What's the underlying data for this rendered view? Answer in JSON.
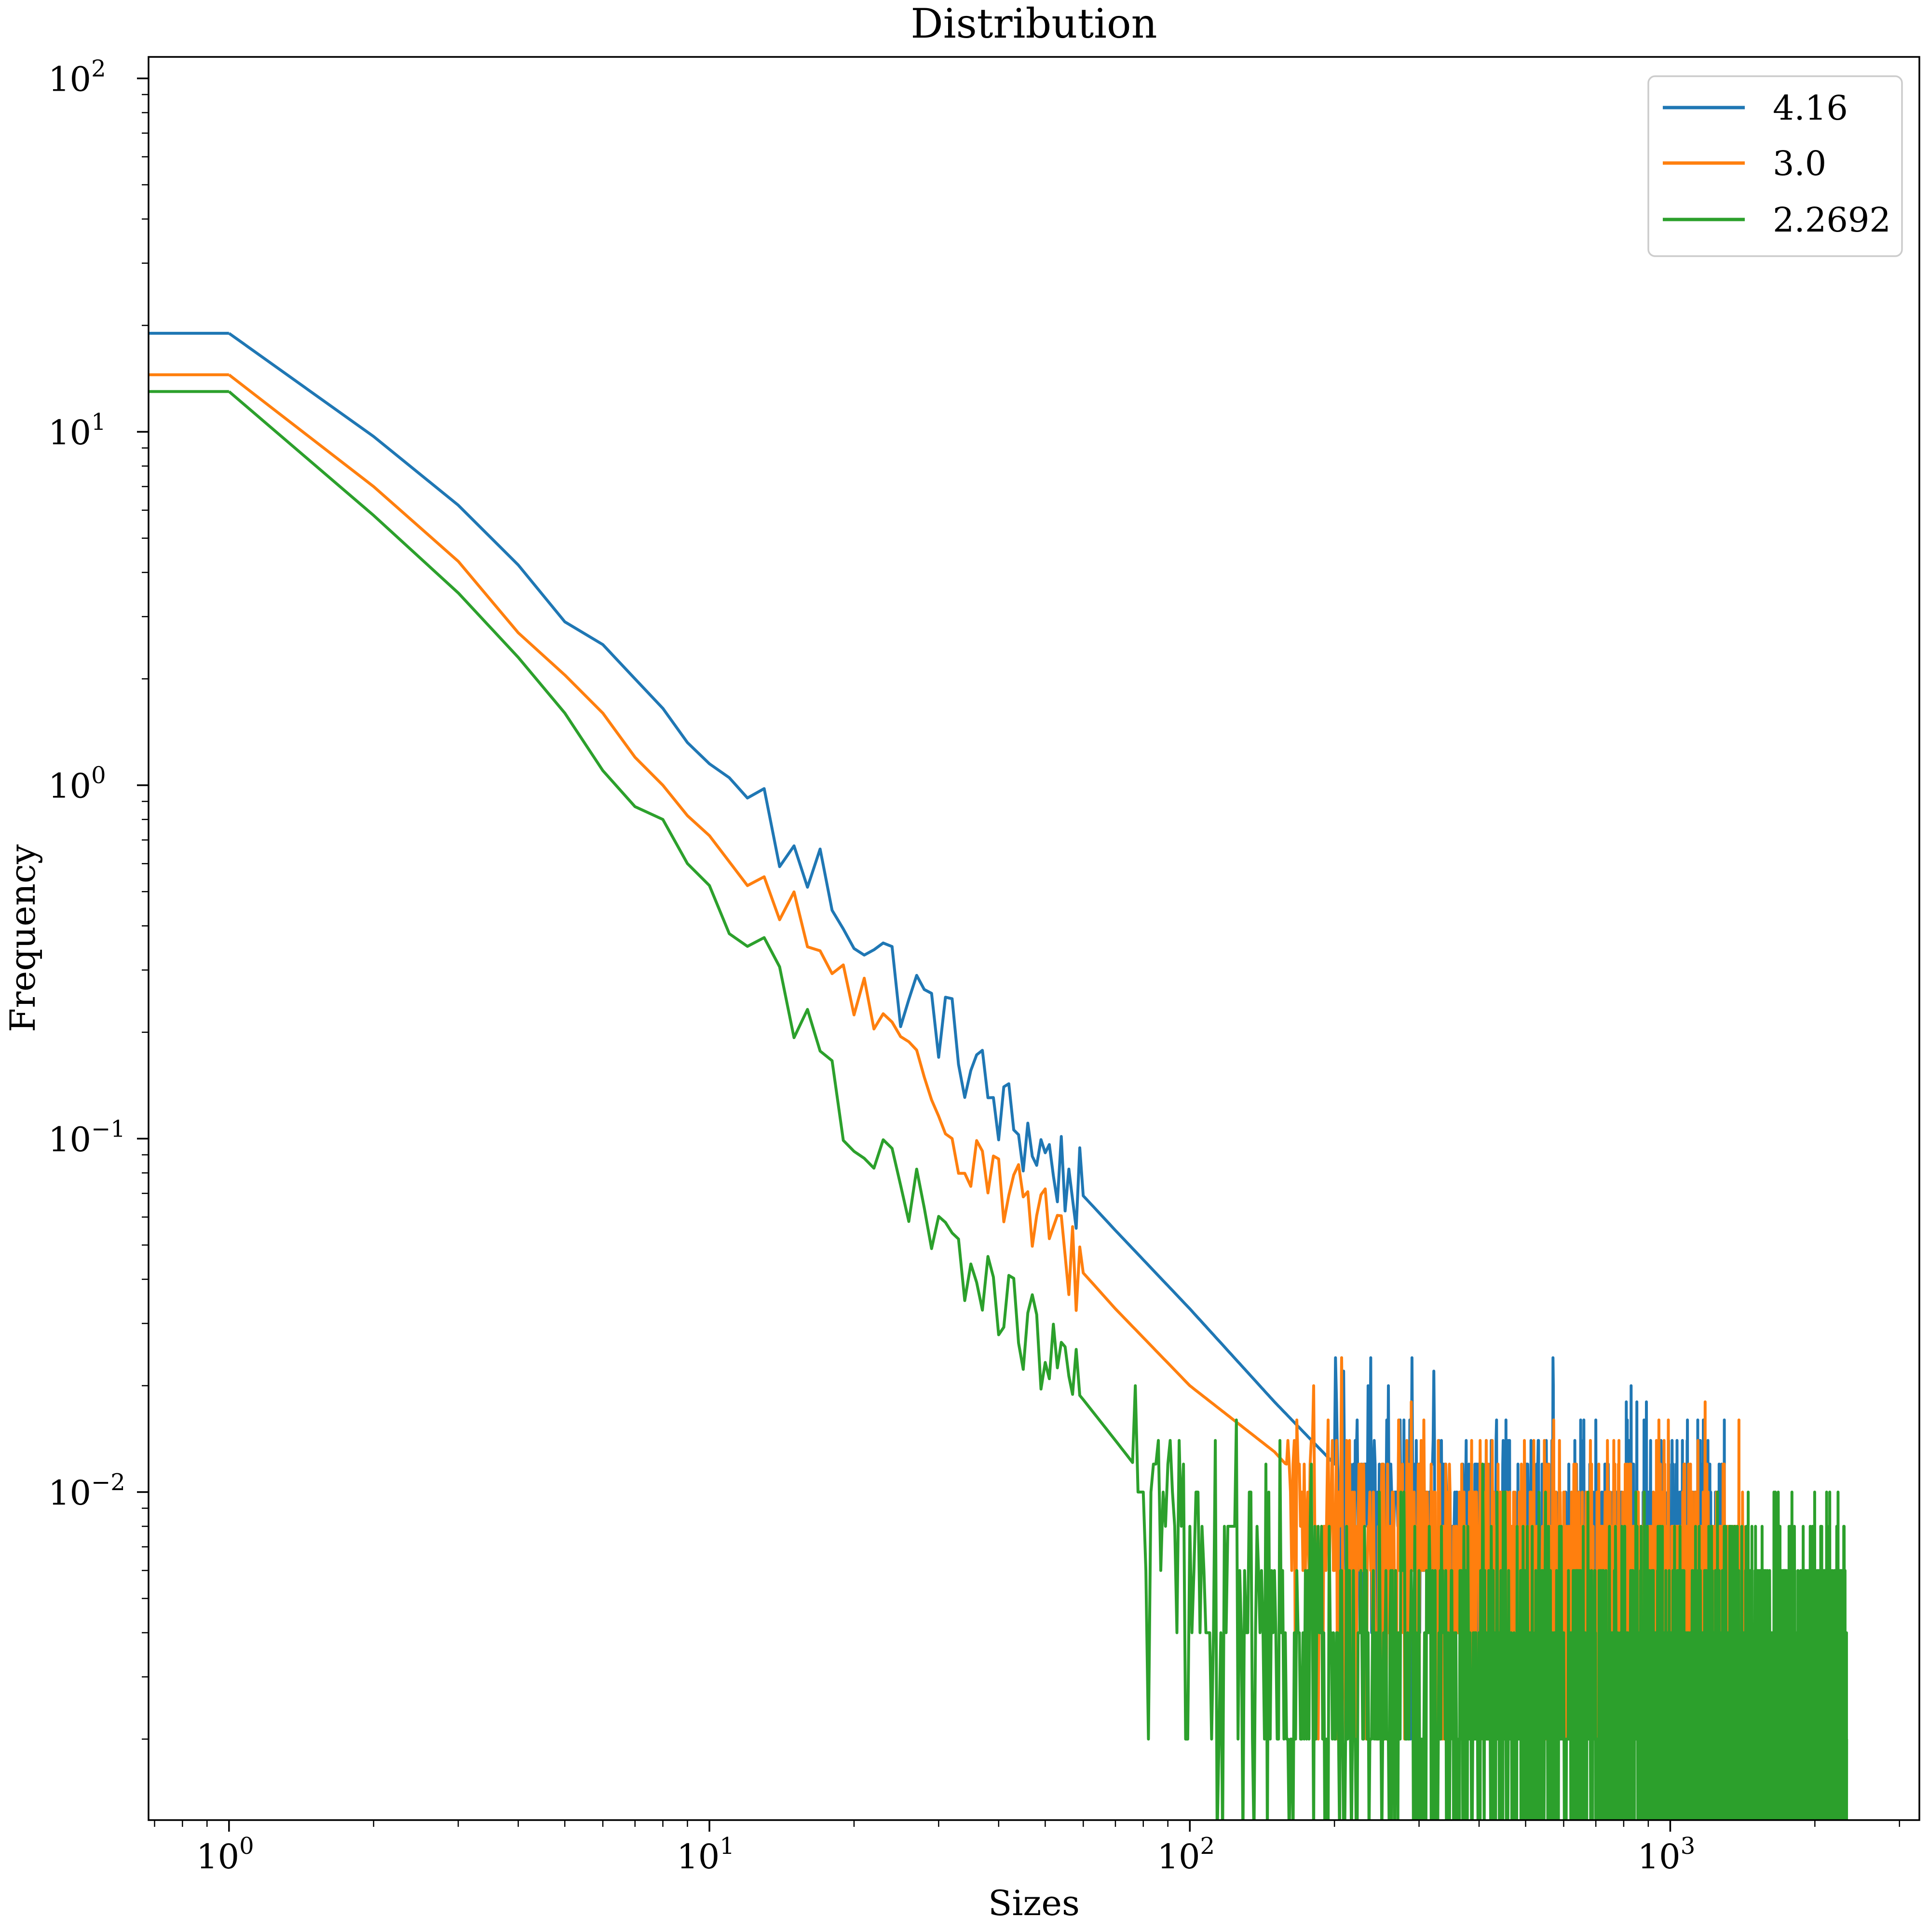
{
  "chart_data": {
    "type": "line",
    "title": "Distribution",
    "xlabel": "Sizes",
    "ylabel": "Frequency",
    "xscale": "log",
    "yscale": "log",
    "xlim": [
      0.68,
      3300
    ],
    "ylim": [
      0.00118,
      115
    ],
    "x_ticks": [
      {
        "base": "10",
        "exp": "0"
      },
      {
        "base": "10",
        "exp": "1"
      },
      {
        "base": "10",
        "exp": "2"
      },
      {
        "base": "10",
        "exp": "3"
      }
    ],
    "y_ticks": [
      {
        "base": "10",
        "exp": "2"
      },
      {
        "base": "10",
        "exp": "1"
      },
      {
        "base": "10",
        "exp": "0"
      },
      {
        "base": "10",
        "exp": "−1"
      },
      {
        "base": "10",
        "exp": "−2"
      }
    ],
    "legend_position": "top-right",
    "grid": false,
    "series": [
      {
        "name": "4.16",
        "color": "#1f77b4",
        "alpha": 4.16,
        "max_size": 1300,
        "curve": [
          [
            1,
            19.0
          ],
          [
            2,
            9.7
          ],
          [
            3,
            6.2
          ],
          [
            4,
            4.2
          ],
          [
            5,
            2.9
          ],
          [
            6,
            2.5
          ],
          [
            7,
            2.0
          ],
          [
            8,
            1.65
          ],
          [
            9,
            1.32
          ],
          [
            10,
            1.15
          ],
          [
            11,
            1.05
          ],
          [
            12,
            0.92
          ],
          [
            13,
            0.86
          ],
          [
            15,
            0.58
          ],
          [
            17,
            0.55
          ],
          [
            20,
            0.42
          ],
          [
            25,
            0.27
          ],
          [
            30,
            0.22
          ],
          [
            40,
            0.12
          ],
          [
            50,
            0.09
          ],
          [
            70,
            0.055
          ],
          [
            100,
            0.033
          ],
          [
            150,
            0.018
          ],
          [
            200,
            0.012
          ],
          [
            300,
            0.008
          ],
          [
            400,
            0.0065
          ],
          [
            600,
            0.006
          ],
          [
            1300,
            0.0055
          ]
        ],
        "floor": 0.002
      },
      {
        "name": "3.0",
        "color": "#ff7f0e",
        "alpha": 3.0,
        "max_size": 1430,
        "curve": [
          [
            1,
            14.5
          ],
          [
            2,
            7.0
          ],
          [
            3,
            4.3
          ],
          [
            4,
            2.7
          ],
          [
            5,
            2.05
          ],
          [
            6,
            1.6
          ],
          [
            7,
            1.2
          ],
          [
            8,
            1.0
          ],
          [
            9,
            0.82
          ],
          [
            10,
            0.72
          ],
          [
            12,
            0.52
          ],
          [
            15,
            0.38
          ],
          [
            17,
            0.33
          ],
          [
            20,
            0.27
          ],
          [
            25,
            0.16
          ],
          [
            30,
            0.12
          ],
          [
            40,
            0.08
          ],
          [
            50,
            0.055
          ],
          [
            70,
            0.033
          ],
          [
            100,
            0.02
          ],
          [
            150,
            0.013
          ],
          [
            200,
            0.0085
          ],
          [
            300,
            0.0065
          ],
          [
            500,
            0.0055
          ],
          [
            1000,
            0.005
          ],
          [
            1430,
            0.0045
          ]
        ],
        "floor": 0.002
      },
      {
        "name": "2.2692",
        "color": "#2ca02c",
        "alpha": 2.2692,
        "max_size": 2330,
        "curve": [
          [
            1,
            13.0
          ],
          [
            2,
            5.8
          ],
          [
            3,
            3.5
          ],
          [
            4,
            2.3
          ],
          [
            5,
            1.6
          ],
          [
            6,
            1.1
          ],
          [
            7,
            0.87
          ],
          [
            8,
            0.8
          ],
          [
            9,
            0.6
          ],
          [
            10,
            0.52
          ],
          [
            11,
            0.38
          ],
          [
            12,
            0.35
          ],
          [
            14,
            0.26
          ],
          [
            17,
            0.2
          ],
          [
            20,
            0.11
          ],
          [
            25,
            0.07
          ],
          [
            30,
            0.05
          ],
          [
            40,
            0.035
          ],
          [
            50,
            0.025
          ],
          [
            70,
            0.014
          ],
          [
            100,
            0.0075
          ],
          [
            150,
            0.0045
          ],
          [
            200,
            0.0035
          ],
          [
            300,
            0.003
          ],
          [
            500,
            0.0028
          ],
          [
            1000,
            0.0025
          ],
          [
            2330,
            0.0025
          ]
        ],
        "floor": 0.002,
        "zero_floor": true
      }
    ]
  }
}
